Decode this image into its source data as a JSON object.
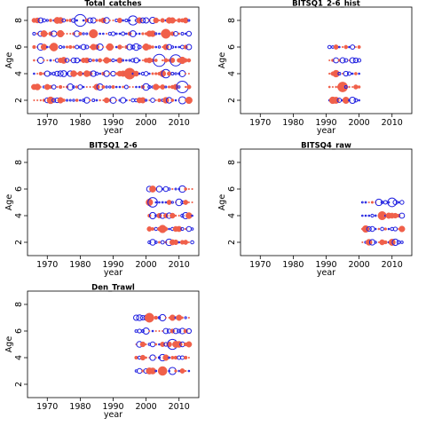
{
  "colors": {
    "positive": "#F0604A",
    "negative": "#1F1FE0"
  },
  "chart_data": [
    {
      "type": "scatter",
      "title": "Total_catches",
      "xlabel": "year",
      "ylabel": "Age",
      "xlim": [
        1964,
        2016
      ],
      "ylim": [
        1,
        9
      ],
      "xticks": [
        1970,
        1980,
        1990,
        2000,
        2010
      ],
      "yticks": [
        2,
        4,
        6,
        8
      ],
      "grid": false,
      "years": [
        1966,
        2013
      ],
      "ages": [
        2,
        3,
        4,
        5,
        6,
        7,
        8
      ]
    },
    {
      "type": "scatter",
      "title": "BITSQ1_2-6_hist",
      "xlabel": "year",
      "ylabel": "Age",
      "xlim": [
        1964,
        2016
      ],
      "ylim": [
        1,
        9
      ],
      "xticks": [
        1970,
        1980,
        1990,
        2000,
        2010
      ],
      "yticks": [
        2,
        4,
        6,
        8
      ],
      "grid": false,
      "years": [
        1991,
        2000
      ],
      "ages": [
        2,
        3,
        4,
        5,
        6
      ]
    },
    {
      "type": "scatter",
      "title": "BITSQ1_2-6",
      "xlabel": "year",
      "ylabel": "Age",
      "xlim": [
        1964,
        2016
      ],
      "ylim": [
        1,
        9
      ],
      "xticks": [
        1970,
        1980,
        1990,
        2000,
        2010
      ],
      "yticks": [
        2,
        4,
        6,
        8
      ],
      "grid": false,
      "years": [
        2001,
        2014
      ],
      "ages": [
        2,
        3,
        4,
        5,
        6
      ]
    },
    {
      "type": "scatter",
      "title": "BITSQ4_raw",
      "xlabel": "year",
      "ylabel": "Age",
      "xlim": [
        1964,
        2016
      ],
      "ylim": [
        1,
        9
      ],
      "xticks": [
        1970,
        1980,
        1990,
        2000,
        2010
      ],
      "yticks": [
        2,
        4,
        6,
        8
      ],
      "grid": false,
      "years": [
        2001,
        2013
      ],
      "ages": [
        2,
        3,
        4,
        5
      ]
    },
    {
      "type": "scatter",
      "title": "Den_Trawl",
      "xlabel": "year",
      "ylabel": "Age",
      "xlim": [
        1964,
        2016
      ],
      "ylim": [
        1,
        9
      ],
      "xticks": [
        1970,
        1980,
        1990,
        2000,
        2010
      ],
      "yticks": [
        2,
        4,
        6,
        8
      ],
      "grid": false,
      "years": [
        1997,
        2013
      ],
      "ages": [
        3,
        4,
        5,
        6,
        7
      ]
    }
  ]
}
